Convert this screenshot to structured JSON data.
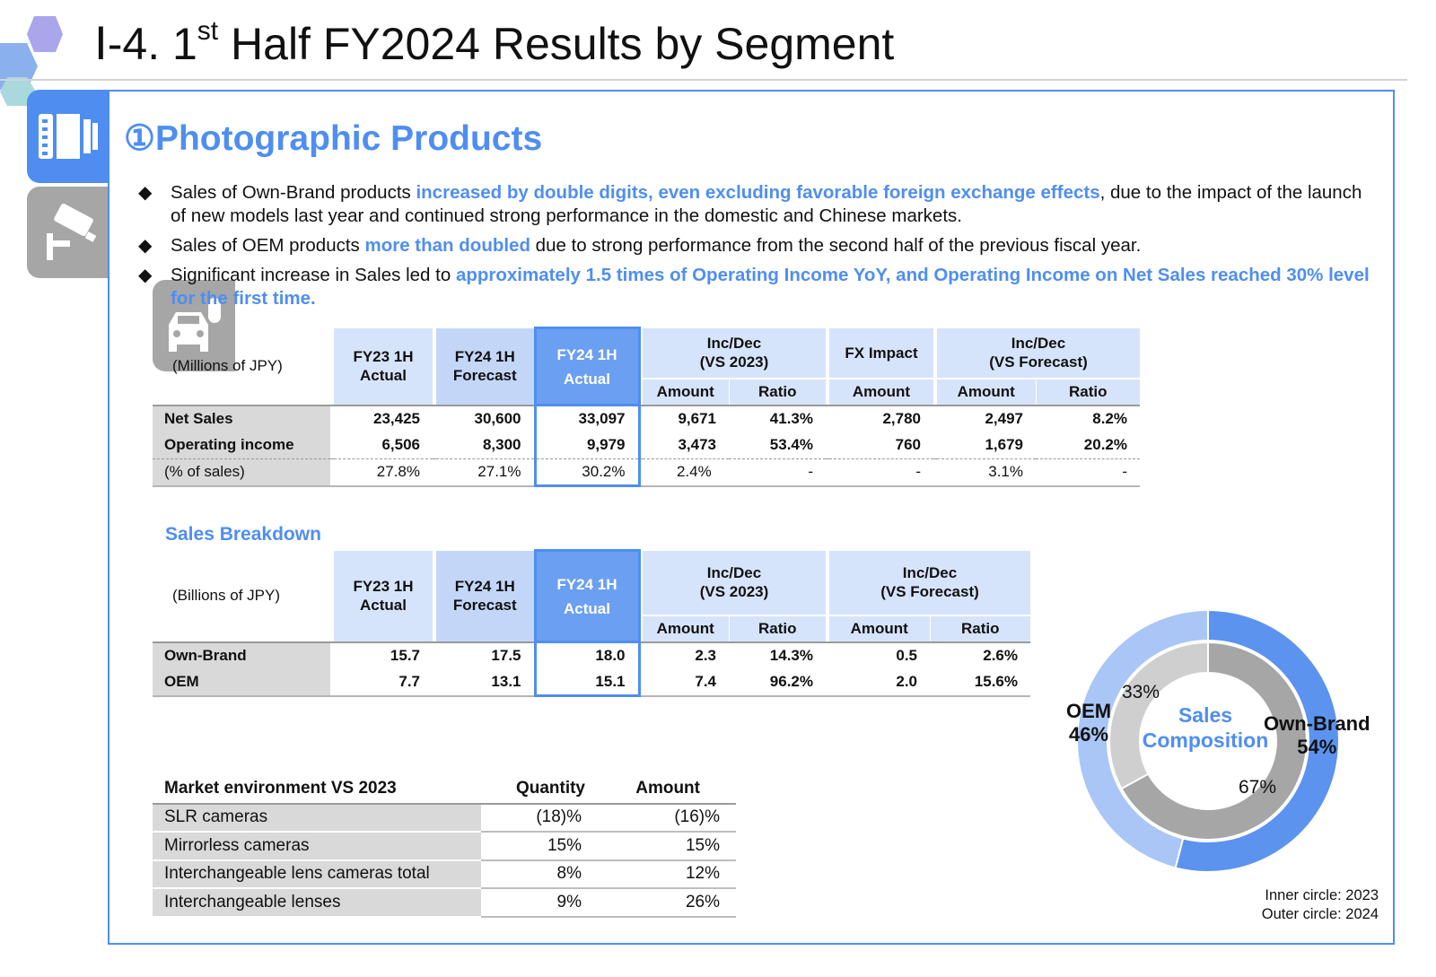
{
  "header": {
    "prefix": "Ⅰ-4. 1",
    "sup": "st",
    "suffix": " Half FY2024 Results by Segment"
  },
  "section": {
    "title": "①Photographic Products"
  },
  "bullets": [
    {
      "pre": "Sales of Own-Brand products ",
      "hl": "increased by double digits, even excluding favorable foreign exchange effects",
      "post": ", due to the impact of the launch of new models last year and continued strong performance in the domestic and Chinese markets."
    },
    {
      "pre": "Sales of OEM products ",
      "hl": "more than doubled",
      "post": " due to strong performance from the second half of the previous fiscal year."
    },
    {
      "pre": "Significant increase in Sales led to ",
      "hl": "approximately 1.5 times of Operating Income YoY, and Operating Income on Net Sales reached 30% level for the first time.",
      "post": ""
    }
  ],
  "results_table": {
    "unit": "(Millions of JPY)",
    "col_fy23": "FY23 1H Actual",
    "col_fy24f_1": "FY24 1H",
    "col_fy24f_2": "Forecast",
    "col_fy23_1": "FY23 1H",
    "col_fy23_2": "Actual",
    "col_act_1": "FY24 1H",
    "col_act_2": "Actual",
    "incdec_2023_1": "Inc/Dec",
    "incdec_2023_2": "(VS 2023)",
    "fx_1": "FX Impact",
    "incdec_fc_1": "Inc/Dec",
    "incdec_fc_2": "(VS Forecast)",
    "amount": "Amount",
    "ratio": "Ratio",
    "rows": [
      {
        "label": "Net Sales",
        "fy23": "23,425",
        "fc": "30,600",
        "act": "33,097",
        "amt": "9,671",
        "ratio": "41.3%",
        "fx": "2,780",
        "famt": "2,497",
        "fratio": "8.2%"
      },
      {
        "label": "Operating income",
        "fy23": "6,506",
        "fc": "8,300",
        "act": "9,979",
        "amt": "3,473",
        "ratio": "53.4%",
        "fx": "760",
        "famt": "1,679",
        "fratio": "20.2%"
      },
      {
        "label": "(% of sales)",
        "fy23": "27.8%",
        "fc": "27.1%",
        "act": "30.2%",
        "amt": "2.4%",
        "ratio": "-",
        "fx": "-",
        "famt": "3.1%",
        "fratio": "-"
      }
    ]
  },
  "breakdown": {
    "title": "Sales Breakdown",
    "unit": "(Billions of JPY)",
    "rows": [
      {
        "label": "Own-Brand",
        "fy23": "15.7",
        "fc": "17.5",
        "act": "18.0",
        "amt": "2.3",
        "ratio": "14.3%",
        "famt": "0.5",
        "fratio": "2.6%"
      },
      {
        "label": "OEM",
        "fy23": "7.7",
        "fc": "13.1",
        "act": "15.1",
        "amt": "7.4",
        "ratio": "96.2%",
        "famt": "2.0",
        "fratio": "15.6%"
      }
    ]
  },
  "market": {
    "head": "Market environment VS 2023",
    "quantity": "Quantity",
    "amount": "Amount",
    "rows": [
      {
        "label": "SLR cameras",
        "q": "(18)%",
        "a": "(16)%"
      },
      {
        "label": "Mirrorless cameras",
        "q": "15%",
        "a": "15%"
      },
      {
        "label": "Interchangeable lens cameras total",
        "q": "8%",
        "a": "12%"
      },
      {
        "label": "Interchangeable lenses",
        "q": "9%",
        "a": "26%"
      }
    ]
  },
  "composition": {
    "center_1": "Sales",
    "center_2": "Composition",
    "outer": {
      "own_brand_pct": 54,
      "oem_pct": 46
    },
    "inner": {
      "own_brand_pct": 67,
      "oem_pct": 33
    },
    "oem_label": "OEM",
    "oem_value": "46%",
    "own_label": "Own-Brand",
    "own_value": "54%",
    "inner_oem_value": "33%",
    "inner_own_value": "67%",
    "note_inner": "Inner circle: 2023",
    "note_outer": "Outer circle: 2024",
    "colors": {
      "outer_own": "#5b93ef",
      "outer_oem": "#a9c6f7",
      "inner_own": "#a6a6a6",
      "inner_oem": "#cfcfcf",
      "accent": "#4f8ef0"
    }
  }
}
